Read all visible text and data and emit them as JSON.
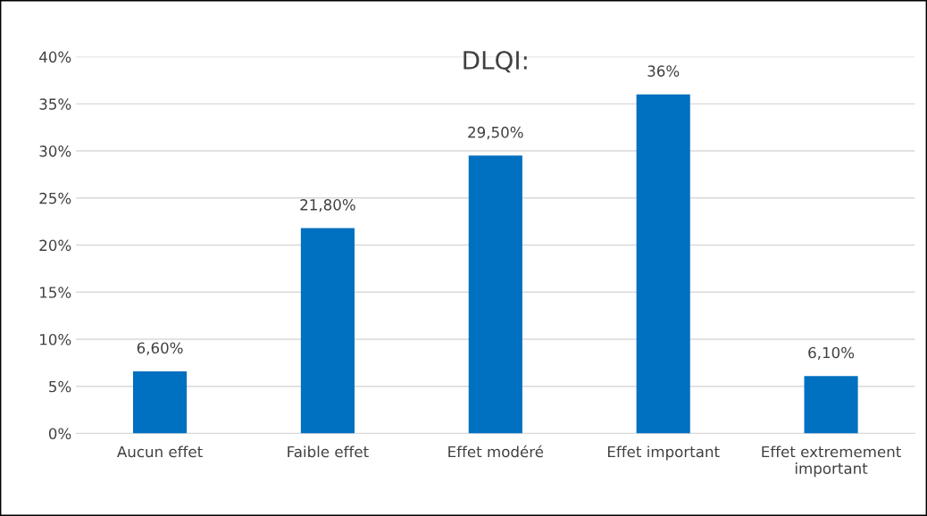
{
  "chart_data": {
    "type": "bar",
    "title": "DLQI:",
    "categories": [
      "Aucun effet",
      "Faible effet",
      "Effet modéré",
      "Effet important",
      "Effet extremement important"
    ],
    "values": [
      6.6,
      21.8,
      29.5,
      36,
      6.1
    ],
    "value_labels": [
      "6,60%",
      "21,80%",
      "29,50%",
      "36%",
      "6,10%"
    ],
    "color": "#0070c0",
    "ylim": [
      0,
      40
    ],
    "yticks": [
      {
        "value": 0,
        "label": "0%"
      },
      {
        "value": 5,
        "label": "5%"
      },
      {
        "value": 10,
        "label": "10%"
      },
      {
        "value": 15,
        "label": "15%"
      },
      {
        "value": 20,
        "label": "20%"
      },
      {
        "value": 25,
        "label": "25%"
      },
      {
        "value": 30,
        "label": "30%"
      },
      {
        "value": 35,
        "label": "35%"
      },
      {
        "value": 40,
        "label": "40%"
      }
    ],
    "grid": "y"
  }
}
